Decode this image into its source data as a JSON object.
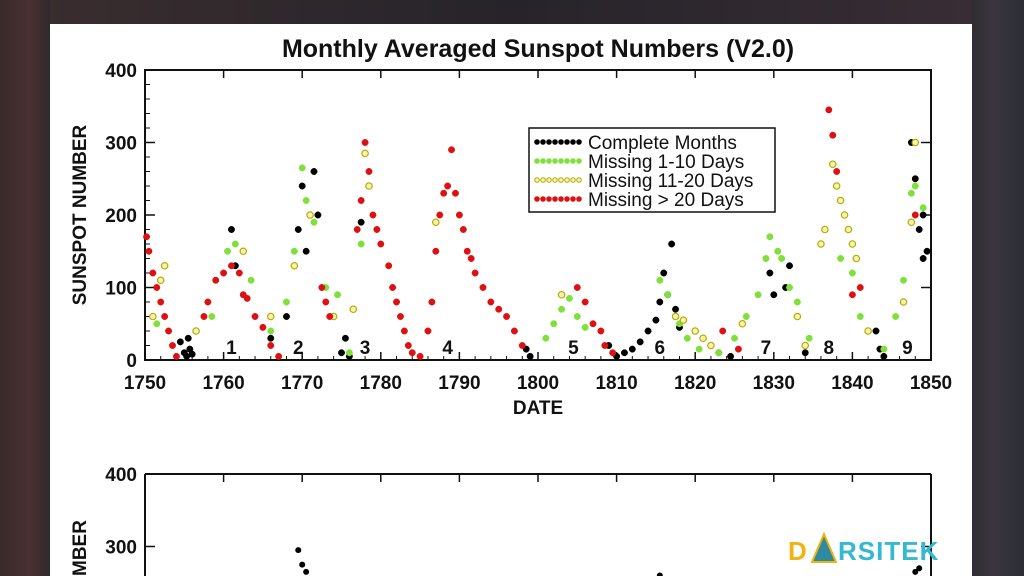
{
  "chart_data": [
    {
      "type": "scatter",
      "title": "Monthly Averaged Sunspot Numbers (V2.0)",
      "xlabel": "DATE",
      "ylabel": "SUNSPOT NUMBER",
      "xlim": [
        1750,
        1850
      ],
      "ylim": [
        0,
        400
      ],
      "x_ticks": [
        "1750",
        "1760",
        "1770",
        "1780",
        "1790",
        "1800",
        "1810",
        "1820",
        "1830",
        "1840",
        "1850"
      ],
      "y_ticks": [
        "0",
        "100",
        "200",
        "300",
        "400"
      ],
      "legend_position": "top-right",
      "grid": false,
      "cycle_labels": [
        {
          "text": "1",
          "x": 1761.0
        },
        {
          "text": "2",
          "x": 1769.5
        },
        {
          "text": "3",
          "x": 1778.0
        },
        {
          "text": "4",
          "x": 1788.5
        },
        {
          "text": "5",
          "x": 1804.5
        },
        {
          "text": "6",
          "x": 1815.5
        },
        {
          "text": "7",
          "x": 1829.0
        },
        {
          "text": "8",
          "x": 1837.0
        },
        {
          "text": "9",
          "x": 1847.0
        }
      ],
      "series": [
        {
          "name": "Complete Months",
          "color": "#000000",
          "points": [
            [
              1754.5,
              25
            ],
            [
              1755.0,
              10
            ],
            [
              1755.3,
              5
            ],
            [
              1755.7,
              15
            ],
            [
              1756.0,
              8
            ],
            [
              1755.5,
              30
            ],
            [
              1761.0,
              180
            ],
            [
              1761.5,
              130
            ],
            [
              1766.0,
              30
            ],
            [
              1768.0,
              60
            ],
            [
              1769.5,
              180
            ],
            [
              1770.0,
              240
            ],
            [
              1770.5,
              150
            ],
            [
              1771.5,
              260
            ],
            [
              1772.0,
              200
            ],
            [
              1775.0,
              10
            ],
            [
              1775.5,
              30
            ],
            [
              1776.0,
              5
            ],
            [
              1777.5,
              190
            ],
            [
              1798.5,
              15
            ],
            [
              1799.0,
              5
            ],
            [
              1809.0,
              20
            ],
            [
              1810.0,
              5
            ],
            [
              1811.0,
              10
            ],
            [
              1812.0,
              15
            ],
            [
              1813.0,
              25
            ],
            [
              1814.0,
              40
            ],
            [
              1815.0,
              55
            ],
            [
              1815.5,
              80
            ],
            [
              1816.0,
              120
            ],
            [
              1816.5,
              90
            ],
            [
              1817.0,
              160
            ],
            [
              1817.5,
              70
            ],
            [
              1818.0,
              45
            ],
            [
              1823.0,
              10
            ],
            [
              1824.5,
              5
            ],
            [
              1829.5,
              120
            ],
            [
              1830.0,
              90
            ],
            [
              1831.5,
              100
            ],
            [
              1832.0,
              130
            ],
            [
              1834.0,
              10
            ],
            [
              1843.0,
              40
            ],
            [
              1843.5,
              15
            ],
            [
              1844.0,
              5
            ],
            [
              1847.5,
              300
            ],
            [
              1848.0,
              250
            ],
            [
              1848.5,
              180
            ],
            [
              1849.0,
              140
            ],
            [
              1849.5,
              150
            ],
            [
              1849.0,
              200
            ]
          ]
        },
        {
          "name": "Missing 1-10 Days",
          "color": "#7fe03a",
          "points": [
            [
              1751.5,
              50
            ],
            [
              1758.5,
              60
            ],
            [
              1760.5,
              150
            ],
            [
              1761.5,
              160
            ],
            [
              1763.5,
              110
            ],
            [
              1766.0,
              40
            ],
            [
              1768.0,
              80
            ],
            [
              1769.0,
              150
            ],
            [
              1770.0,
              265
            ],
            [
              1770.5,
              220
            ],
            [
              1771.5,
              190
            ],
            [
              1773.0,
              100
            ],
            [
              1774.5,
              90
            ],
            [
              1776.0,
              10
            ],
            [
              1777.5,
              160
            ],
            [
              1801.0,
              30
            ],
            [
              1802.0,
              50
            ],
            [
              1803.0,
              70
            ],
            [
              1804.0,
              85
            ],
            [
              1805.0,
              60
            ],
            [
              1806.0,
              45
            ],
            [
              1815.5,
              110
            ],
            [
              1816.5,
              90
            ],
            [
              1818.0,
              50
            ],
            [
              1819.0,
              30
            ],
            [
              1820.5,
              15
            ],
            [
              1823.0,
              10
            ],
            [
              1825.0,
              30
            ],
            [
              1826.5,
              60
            ],
            [
              1828.0,
              90
            ],
            [
              1829.0,
              140
            ],
            [
              1829.5,
              170
            ],
            [
              1830.5,
              150
            ],
            [
              1831.0,
              140
            ],
            [
              1832.0,
              100
            ],
            [
              1833.0,
              80
            ],
            [
              1834.5,
              30
            ],
            [
              1838.5,
              140
            ],
            [
              1840.0,
              120
            ],
            [
              1841.0,
              60
            ],
            [
              1842.0,
              40
            ],
            [
              1844.0,
              15
            ],
            [
              1845.5,
              60
            ],
            [
              1846.5,
              110
            ],
            [
              1847.5,
              230
            ],
            [
              1848.0,
              240
            ],
            [
              1849.0,
              210
            ]
          ]
        },
        {
          "name": "Missing 11-20 Days",
          "color": "#e8e85a",
          "points": [
            [
              1751.0,
              60
            ],
            [
              1752.0,
              110
            ],
            [
              1752.5,
              130
            ],
            [
              1756.5,
              40
            ],
            [
              1762.5,
              150
            ],
            [
              1766.0,
              60
            ],
            [
              1769.0,
              130
            ],
            [
              1771.0,
              200
            ],
            [
              1774.0,
              60
            ],
            [
              1776.5,
              70
            ],
            [
              1778.0,
              285
            ],
            [
              1778.5,
              240
            ],
            [
              1787.0,
              190
            ],
            [
              1803.0,
              90
            ],
            [
              1817.5,
              60
            ],
            [
              1818.5,
              55
            ],
            [
              1820.0,
              40
            ],
            [
              1821.0,
              30
            ],
            [
              1822.0,
              20
            ],
            [
              1826.0,
              50
            ],
            [
              1833.0,
              60
            ],
            [
              1834.0,
              20
            ],
            [
              1836.0,
              160
            ],
            [
              1836.5,
              180
            ],
            [
              1837.5,
              270
            ],
            [
              1838.0,
              240
            ],
            [
              1838.5,
              220
            ],
            [
              1839.0,
              200
            ],
            [
              1839.5,
              180
            ],
            [
              1840.0,
              160
            ],
            [
              1840.5,
              140
            ],
            [
              1842.0,
              40
            ],
            [
              1846.5,
              80
            ],
            [
              1847.5,
              190
            ],
            [
              1848.0,
              300
            ]
          ]
        },
        {
          "name": "Missing > 20 Days",
          "color": "#dd1111",
          "points": [
            [
              1750.2,
              170
            ],
            [
              1750.5,
              150
            ],
            [
              1751.0,
              120
            ],
            [
              1751.5,
              100
            ],
            [
              1752.0,
              80
            ],
            [
              1752.5,
              60
            ],
            [
              1753.0,
              40
            ],
            [
              1753.5,
              20
            ],
            [
              1754.0,
              5
            ],
            [
              1757.5,
              60
            ],
            [
              1758.0,
              80
            ],
            [
              1759.0,
              110
            ],
            [
              1760.0,
              120
            ],
            [
              1761.0,
              130
            ],
            [
              1762.0,
              120
            ],
            [
              1762.5,
              90
            ],
            [
              1763.0,
              85
            ],
            [
              1764.0,
              60
            ],
            [
              1765.0,
              45
            ],
            [
              1766.0,
              20
            ],
            [
              1767.0,
              5
            ],
            [
              1772.5,
              100
            ],
            [
              1773.0,
              80
            ],
            [
              1773.5,
              60
            ],
            [
              1777.0,
              180
            ],
            [
              1777.5,
              220
            ],
            [
              1778.0,
              300
            ],
            [
              1778.5,
              260
            ],
            [
              1779.0,
              200
            ],
            [
              1779.5,
              180
            ],
            [
              1780.0,
              160
            ],
            [
              1781.0,
              130
            ],
            [
              1781.5,
              100
            ],
            [
              1782.0,
              80
            ],
            [
              1782.5,
              60
            ],
            [
              1783.0,
              40
            ],
            [
              1783.5,
              20
            ],
            [
              1784.0,
              10
            ],
            [
              1785.0,
              5
            ],
            [
              1786.0,
              40
            ],
            [
              1786.5,
              80
            ],
            [
              1787.0,
              150
            ],
            [
              1787.5,
              200
            ],
            [
              1788.0,
              230
            ],
            [
              1788.5,
              240
            ],
            [
              1789.0,
              290
            ],
            [
              1789.5,
              230
            ],
            [
              1790.0,
              200
            ],
            [
              1790.5,
              180
            ],
            [
              1791.0,
              150
            ],
            [
              1791.5,
              140
            ],
            [
              1792.0,
              120
            ],
            [
              1793.0,
              100
            ],
            [
              1794.0,
              80
            ],
            [
              1795.0,
              70
            ],
            [
              1796.0,
              60
            ],
            [
              1797.0,
              40
            ],
            [
              1798.0,
              20
            ],
            [
              1805.0,
              100
            ],
            [
              1806.0,
              80
            ],
            [
              1807.0,
              50
            ],
            [
              1808.0,
              40
            ],
            [
              1808.5,
              20
            ],
            [
              1809.5,
              10
            ],
            [
              1823.5,
              40
            ],
            [
              1825.5,
              15
            ],
            [
              1837.0,
              345
            ],
            [
              1837.5,
              310
            ],
            [
              1838.0,
              260
            ],
            [
              1840.0,
              90
            ],
            [
              1841.0,
              100
            ],
            [
              1848.0,
              200
            ]
          ]
        }
      ]
    },
    {
      "type": "scatter",
      "title": "",
      "ylabel": "SUNSPOT NUMBER",
      "ylabel_visible": "MBER",
      "y_ticks": [
        "300",
        "400"
      ],
      "ylim": [
        0,
        400
      ],
      "series": [
        {
          "name": "",
          "color": "#000000",
          "points": [
            [
              1769.5,
              295
            ],
            [
              1770.0,
              275
            ],
            [
              1770.5,
              265
            ],
            [
              1815.5,
              260
            ],
            [
              1848.0,
              265
            ],
            [
              1848.5,
              270
            ]
          ]
        }
      ]
    }
  ],
  "watermark": {
    "text_a": "D",
    "text_b": "RSITEK",
    "colors": {
      "primary": "#f2b20f",
      "secondary": "#35b8d4"
    }
  }
}
